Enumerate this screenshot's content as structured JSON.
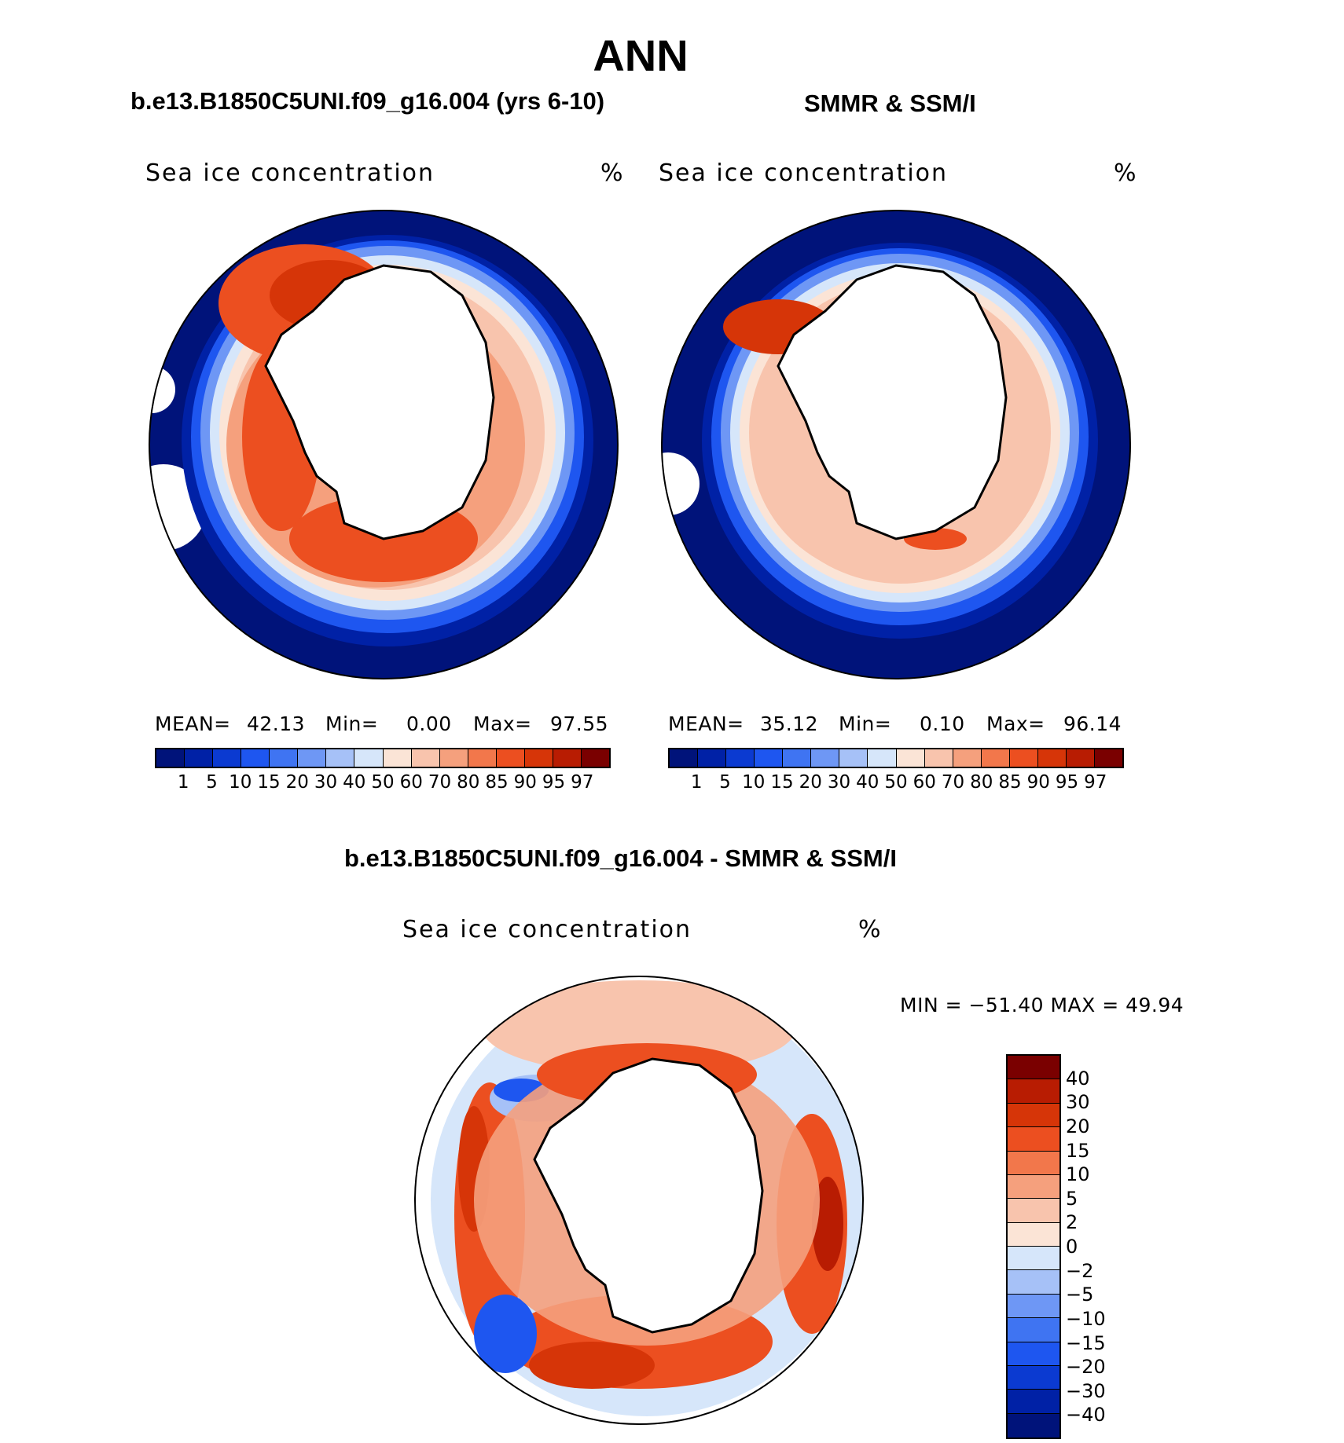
{
  "figure": {
    "season": "ANN",
    "field_label": "Sea ice concentration",
    "units": "%",
    "region": "Southern Hemisphere (Antarctic)"
  },
  "panels": [
    {
      "id": "model",
      "title": "b.e13.B1850C5UNI.f09_g16.004 (yrs 6-10)",
      "field_label": "Sea ice concentration",
      "units": "%",
      "mean_label": "MEAN=",
      "mean": "42.13",
      "min_label": "Min=",
      "min": "0.00",
      "max_label": "Max=",
      "max": "97.55"
    },
    {
      "id": "obs",
      "title": "SMMR & SSM/I",
      "field_label": "Sea ice concentration",
      "units": "%",
      "mean_label": "MEAN=",
      "mean": "35.12",
      "min_label": "Min=",
      "min": "0.10",
      "max_label": "Max=",
      "max": "96.14"
    }
  ],
  "diff_panel": {
    "title": "b.e13.B1850C5UNI.f09_g16.004 - SMMR & SSM/I",
    "field_label": "Sea ice concentration",
    "units": "%",
    "minmax_text": "MIN = −51.40 MAX =   49.94"
  },
  "colorbar_conc": {
    "levels": [
      "1",
      "5",
      "10",
      "15",
      "20",
      "30",
      "40",
      "50",
      "60",
      "70",
      "80",
      "85",
      "90",
      "95",
      "97"
    ],
    "colors": [
      "#00137a",
      "#0021a6",
      "#0b3ad1",
      "#1e56f0",
      "#3f74f2",
      "#6e97f5",
      "#a6c1f7",
      "#d6e6fa",
      "#fbe4d6",
      "#f8c4ad",
      "#f5a07d",
      "#f2774b",
      "#ec4f20",
      "#d63508",
      "#b81c02",
      "#7a0000"
    ]
  },
  "colorbar_diff": {
    "levels": [
      "40",
      "30",
      "20",
      "15",
      "10",
      "5",
      "2",
      "0",
      "−2",
      "−5",
      "−10",
      "−15",
      "−20",
      "−30",
      "−40"
    ],
    "colors": [
      "#7a0000",
      "#b81c02",
      "#d63508",
      "#ec4f20",
      "#f2774b",
      "#f5a07d",
      "#f8c4ad",
      "#fbe4d6",
      "#d6e6fa",
      "#a6c1f7",
      "#6e97f5",
      "#3f74f2",
      "#1e56f0",
      "#0b3ad1",
      "#0021a6",
      "#00137a"
    ]
  },
  "map_colors": {
    "ocean_edge": "#00137a",
    "blue_mid": "#1e56f0",
    "blue_light": "#a6c1f7",
    "pale": "#fbe4d6",
    "salmon": "#f5a07d",
    "orange": "#ec4f20",
    "red": "#d63508",
    "land": "#ffffff"
  }
}
